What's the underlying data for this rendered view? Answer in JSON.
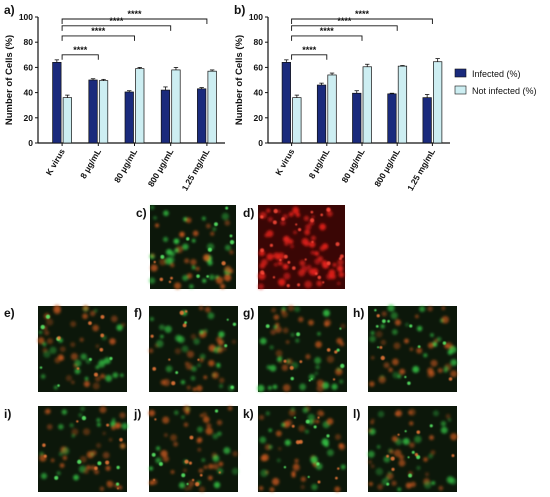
{
  "colors": {
    "infected": "#1a2a7c",
    "not_infected": "#cdeef2",
    "bar_edge": "#111111",
    "micro_bg": "#0c170a",
    "micro_green": "#39d24a",
    "micro_orange": "#c8581e",
    "micro_red": "#e0201a",
    "micro_red_bg": "#3a0605"
  },
  "legend": {
    "infected": "Infected (%)",
    "not_infected": "Not infected (%)"
  },
  "significance": "****",
  "chart_data": [
    {
      "panel": "a)",
      "type": "bar",
      "ylabel": "Number of Cells (%)",
      "ylim": [
        0,
        100
      ],
      "yticks": [
        "0",
        "20",
        "40",
        "60",
        "80",
        "100"
      ],
      "categories": [
        "K virus",
        "8 μg/mL",
        "80 μg/mL",
        "800 μg/mL",
        "1.25 mg/mL"
      ],
      "series": [
        {
          "name": "Infected (%)",
          "values": [
            64,
            50,
            40.5,
            42,
            43
          ],
          "errors": [
            2,
            1,
            1,
            2.5,
            1
          ]
        },
        {
          "name": "Not infected (%)",
          "values": [
            36,
            49.5,
            59,
            58,
            57
          ],
          "errors": [
            2,
            1,
            1,
            2,
            1
          ]
        }
      ],
      "brackets": [
        {
          "from": 0,
          "to": 1,
          "label": "****"
        },
        {
          "from": 0,
          "to": 2,
          "label": "****"
        },
        {
          "from": 0,
          "to": 3,
          "label": "****"
        },
        {
          "from": 0,
          "to": 4,
          "label": "****"
        }
      ],
      "grid": false
    },
    {
      "panel": "b)",
      "type": "bar",
      "ylabel": "Number of Cells (%)",
      "ylim": [
        0,
        100
      ],
      "yticks": [
        "0",
        "20",
        "40",
        "60",
        "80",
        "100"
      ],
      "categories": [
        "K virus",
        "8 μg/mL",
        "80 μg/mL",
        "800 μg/mL",
        "1.25 mg/mL"
      ],
      "series": [
        {
          "name": "Infected (%)",
          "values": [
            64,
            46,
            39.5,
            39,
            36
          ],
          "errors": [
            2,
            1.5,
            2,
            0.5,
            2.5
          ]
        },
        {
          "name": "Not infected (%)",
          "values": [
            36,
            54,
            60.5,
            61,
            64.5
          ],
          "errors": [
            2,
            1.5,
            2,
            0.5,
            2.5
          ]
        }
      ],
      "brackets": [
        {
          "from": 0,
          "to": 1,
          "label": "****"
        },
        {
          "from": 0,
          "to": 2,
          "label": "****"
        },
        {
          "from": 0,
          "to": 3,
          "label": "****"
        },
        {
          "from": 0,
          "to": 4,
          "label": "****"
        }
      ],
      "legend_position": "right",
      "grid": false
    }
  ],
  "micrographs": [
    {
      "label": "c)",
      "stain": "green-dense"
    },
    {
      "label": "d)",
      "stain": "red"
    },
    {
      "label": "e)",
      "stain": "mixed"
    },
    {
      "label": "f)",
      "stain": "mixed"
    },
    {
      "label": "g)",
      "stain": "mixed"
    },
    {
      "label": "h)",
      "stain": "mixed"
    },
    {
      "label": "i)",
      "stain": "mixed"
    },
    {
      "label": "j)",
      "stain": "mixed"
    },
    {
      "label": "k)",
      "stain": "mixed"
    },
    {
      "label": "l)",
      "stain": "mixed"
    }
  ]
}
